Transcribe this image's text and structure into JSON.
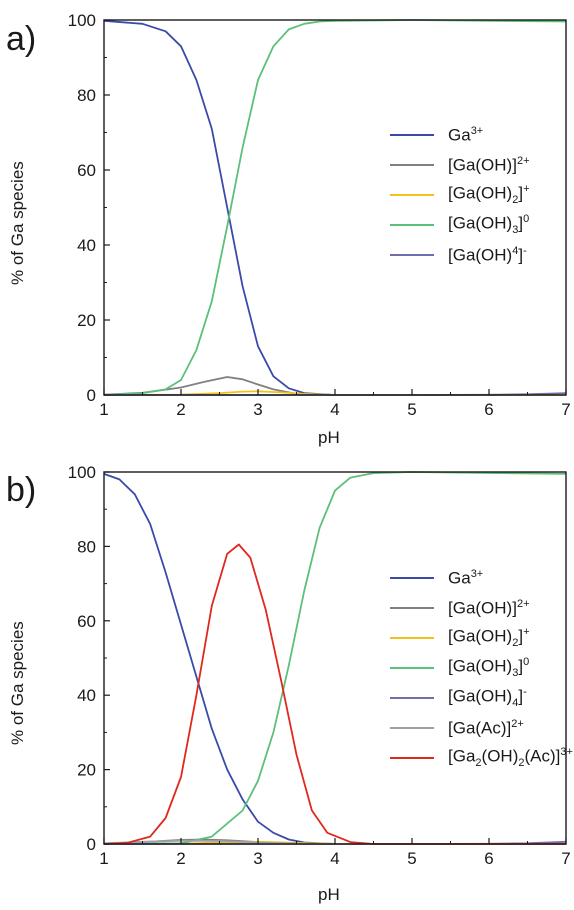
{
  "figure": {
    "panel_letters": [
      "a)",
      "b)"
    ]
  },
  "chart_data": [
    {
      "type": "line",
      "panel": "a)",
      "xlabel": "pH",
      "ylabel": "% of Ga species",
      "xlim": [
        1,
        7
      ],
      "ylim": [
        0,
        100
      ],
      "xticks": [
        "1",
        "2",
        "3",
        "4",
        "5",
        "6",
        "7"
      ],
      "yticks": [
        "0",
        "20",
        "40",
        "60",
        "80",
        "100"
      ],
      "legend_position": "center-right",
      "series": [
        {
          "name": "Ga3+",
          "color": "#3b4aa8",
          "x": [
            1,
            1.5,
            1.8,
            2.0,
            2.2,
            2.4,
            2.6,
            2.8,
            3.0,
            3.2,
            3.4,
            3.6,
            4.0,
            5.0,
            7.0
          ],
          "y": [
            99.8,
            99.0,
            97.0,
            93.0,
            84.0,
            71.0,
            50.0,
            29.0,
            13.0,
            5.0,
            1.8,
            0.5,
            0,
            0,
            0
          ]
        },
        {
          "name": "[Ga(OH)]2+",
          "color": "#808080",
          "x": [
            1,
            1.5,
            2.0,
            2.3,
            2.6,
            2.8,
            3.0,
            3.2,
            3.5,
            4.0,
            7.0
          ],
          "y": [
            0.1,
            0.6,
            2.0,
            3.5,
            4.8,
            4.2,
            2.8,
            1.5,
            0.3,
            0,
            0
          ]
        },
        {
          "name": "[Ga(OH)2]+",
          "color": "#f2c21a",
          "x": [
            1,
            2.0,
            2.5,
            2.8,
            3.0,
            3.3,
            3.6,
            4.0,
            7.0
          ],
          "y": [
            0,
            0.1,
            0.5,
            0.9,
            1.0,
            0.7,
            0.3,
            0,
            0
          ]
        },
        {
          "name": "[Ga(OH)3]0",
          "color": "#5cbf7a",
          "x": [
            1,
            1.5,
            1.8,
            2.0,
            2.2,
            2.4,
            2.6,
            2.8,
            3.0,
            3.2,
            3.4,
            3.6,
            3.8,
            4.0,
            5.0,
            7.0
          ],
          "y": [
            0,
            0.5,
            1.5,
            4.0,
            12.0,
            25.0,
            45.0,
            66.0,
            84.0,
            93.0,
            97.5,
            99.0,
            99.6,
            99.8,
            100,
            99.6
          ]
        },
        {
          "name": "[Ga(OH)4]-",
          "color": "#6f6faf",
          "x": [
            1,
            5.0,
            6.0,
            6.5,
            7.0
          ],
          "y": [
            0,
            0,
            0.05,
            0.2,
            0.5
          ]
        }
      ],
      "legend_labels": [
        {
          "base": "Ga",
          "sub": "",
          "tail": "",
          "sup": "3+",
          "color": "#3b4aa8"
        },
        {
          "base": "[Ga(OH)]",
          "sub": "",
          "tail": "",
          "sup": "2+",
          "color": "#808080"
        },
        {
          "base": "[Ga(OH)",
          "sub": "2",
          "tail": "]",
          "sup": "+",
          "color": "#f2c21a"
        },
        {
          "base": "[Ga(OH)",
          "sub": "3",
          "tail": "]",
          "sup": "0",
          "color": "#5cbf7a"
        },
        {
          "base": "[Ga(OH)",
          "sub": "",
          "tail": "",
          "sup": "4",
          "tail2": "]",
          "sup2": "-",
          "color": "#6f6faf"
        }
      ]
    },
    {
      "type": "line",
      "panel": "b)",
      "xlabel": "pH",
      "ylabel": "% of Ga species",
      "xlim": [
        1,
        7
      ],
      "ylim": [
        0,
        100
      ],
      "xticks": [
        "1",
        "2",
        "3",
        "4",
        "5",
        "6",
        "7"
      ],
      "yticks": [
        "0",
        "20",
        "40",
        "60",
        "80",
        "100"
      ],
      "legend_position": "center-right",
      "series": [
        {
          "name": "Ga3+",
          "color": "#3b4aa8",
          "x": [
            1,
            1.2,
            1.4,
            1.6,
            1.8,
            2.0,
            2.2,
            2.4,
            2.6,
            2.8,
            3.0,
            3.2,
            3.4,
            3.6,
            4.0,
            7.0
          ],
          "y": [
            99.5,
            98.0,
            94.0,
            86.0,
            73.0,
            59.0,
            45.0,
            31.0,
            20.0,
            12.0,
            6.0,
            3.0,
            1.2,
            0.4,
            0,
            0
          ]
        },
        {
          "name": "[Ga(OH)]2+",
          "color": "#808080",
          "x": [
            1,
            1.5,
            2.0,
            2.3,
            2.6,
            3.0,
            3.5,
            4.0,
            7.0
          ],
          "y": [
            0.1,
            0.5,
            1.1,
            1.2,
            1.0,
            0.5,
            0.1,
            0,
            0
          ]
        },
        {
          "name": "[Ga(OH)2]+",
          "color": "#f2c21a",
          "x": [
            1,
            2.0,
            2.5,
            3.0,
            3.5,
            4.0,
            7.0
          ],
          "y": [
            0,
            0.1,
            0.4,
            0.6,
            0.3,
            0.05,
            0
          ]
        },
        {
          "name": "[Ga(OH)3]0",
          "color": "#5cbf7a",
          "x": [
            1,
            2.0,
            2.4,
            2.8,
            3.0,
            3.2,
            3.4,
            3.6,
            3.8,
            4.0,
            4.2,
            4.5,
            5.0,
            7.0
          ],
          "y": [
            0,
            0.2,
            2.0,
            9.0,
            17.0,
            30.0,
            48.0,
            68.0,
            85.0,
            95.0,
            98.5,
            99.7,
            100,
            99.5
          ]
        },
        {
          "name": "[Ga(OH)4]-",
          "color": "#6f6faf",
          "x": [
            1,
            5.0,
            6.0,
            6.5,
            7.0
          ],
          "y": [
            0,
            0,
            0.05,
            0.2,
            0.6
          ]
        },
        {
          "name": "[Ga(Ac)]2+",
          "color": "#a0a0a0",
          "x": [
            1,
            1.5,
            2.0,
            2.5,
            3.0,
            3.5,
            4.0,
            7.0
          ],
          "y": [
            0.2,
            0.6,
            0.9,
            0.8,
            0.4,
            0.1,
            0,
            0
          ]
        },
        {
          "name": "[Ga2(OH)2(Ac)]3+",
          "color": "#e0281e",
          "x": [
            1,
            1.3,
            1.6,
            1.8,
            2.0,
            2.2,
            2.4,
            2.6,
            2.75,
            2.9,
            3.1,
            3.3,
            3.5,
            3.7,
            3.9,
            4.2,
            4.5,
            7.0
          ],
          "y": [
            0,
            0.3,
            2.0,
            7.0,
            18.0,
            40.0,
            64.0,
            78.0,
            80.5,
            77.0,
            63.0,
            44.0,
            24.0,
            9.0,
            3.0,
            0.5,
            0,
            0
          ]
        }
      ],
      "legend_labels": [
        {
          "base": "Ga",
          "sub": "",
          "tail": "",
          "sup": "3+",
          "color": "#3b4aa8"
        },
        {
          "base": "[Ga(OH)]",
          "sub": "",
          "tail": "",
          "sup": "2+",
          "color": "#808080"
        },
        {
          "base": "[Ga(OH)",
          "sub": "2",
          "tail": "]",
          "sup": "+",
          "color": "#f2c21a"
        },
        {
          "base": "[Ga(OH)",
          "sub": "3",
          "tail": "]",
          "sup": "0",
          "color": "#5cbf7a"
        },
        {
          "base": "[Ga(OH)",
          "sub": "4",
          "tail": "]",
          "sup": "-",
          "color": "#6f6faf"
        },
        {
          "base": "[Ga(Ac)]",
          "sub": "",
          "tail": "",
          "sup": "2+",
          "color": "#a0a0a0"
        },
        {
          "base": "[Ga",
          "sub": "2",
          "tail": "(OH)",
          "sub2": "2",
          "tail2": "(Ac)]",
          "sup": "3+",
          "color": "#e0281e"
        }
      ]
    }
  ]
}
